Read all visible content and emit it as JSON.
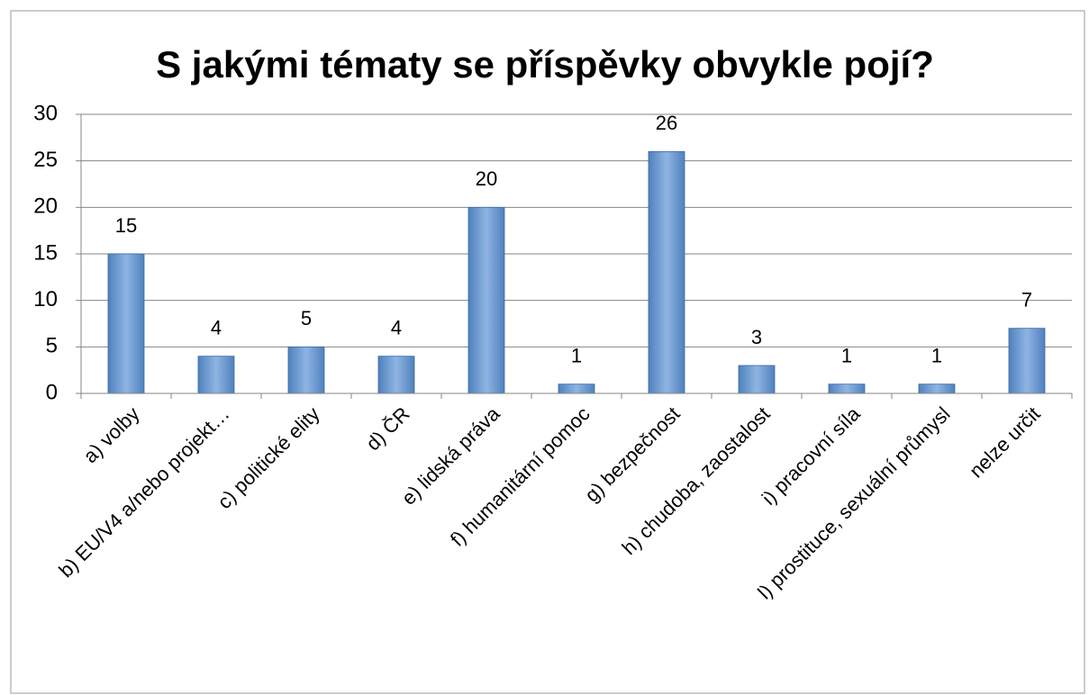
{
  "chart_data": {
    "type": "bar",
    "title": "S jakými tématy se příspěvky obvykle pojí?",
    "categories": [
      "a) volby",
      "b) EU/V4 a/nebo projekt…",
      "c) politické elity",
      "d) ČR",
      "e) lidská práva",
      "f) humanitární pomoc",
      "g) bezpečnost",
      "h) chudoba, zaostalost",
      "i) pracovní síla",
      "l) prostituce, sexuální průmysl",
      "nelze určit"
    ],
    "values": [
      15,
      4,
      5,
      4,
      20,
      1,
      26,
      3,
      1,
      1,
      7
    ],
    "color": "#4f81bd",
    "ylim": [
      0,
      30
    ],
    "yticks": [
      0,
      5,
      10,
      15,
      20,
      25,
      30
    ],
    "grid": true
  }
}
